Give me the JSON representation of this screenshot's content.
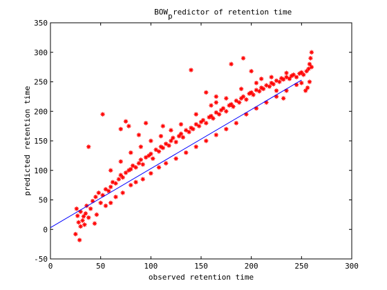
{
  "chart_data": {
    "type": "scatter",
    "title": "BOW_predictor of retention time",
    "title_main": "BOW",
    "title_sub": "p",
    "title_rest": "redictor of retention time",
    "xlabel": "observed retention time",
    "ylabel": "predicted retention time",
    "xlim": [
      0,
      300
    ],
    "ylim": [
      -50,
      350
    ],
    "xticks": [
      "0",
      "50",
      "100",
      "150",
      "200",
      "250",
      "300"
    ],
    "yticks": [
      "-50",
      "0",
      "50",
      "100",
      "150",
      "200",
      "250",
      "300",
      "350"
    ],
    "grid": false,
    "marker_color": "#ff0000",
    "line_color": "#0000ff",
    "series": [
      {
        "marker": "asterisk",
        "points": [
          [
            25,
            -8
          ],
          [
            29,
            -18
          ],
          [
            27,
            23
          ],
          [
            32,
            15
          ],
          [
            34,
            8
          ],
          [
            30,
            30
          ],
          [
            26,
            35
          ],
          [
            35,
            27
          ],
          [
            38,
            20
          ],
          [
            36,
            40
          ],
          [
            40,
            35
          ],
          [
            42,
            48
          ],
          [
            45,
            55
          ],
          [
            48,
            62
          ],
          [
            50,
            45
          ],
          [
            52,
            58
          ],
          [
            55,
            68
          ],
          [
            58,
            65
          ],
          [
            60,
            72
          ],
          [
            62,
            80
          ],
          [
            65,
            78
          ],
          [
            68,
            85
          ],
          [
            70,
            92
          ],
          [
            72,
            88
          ],
          [
            75,
            96
          ],
          [
            78,
            100
          ],
          [
            80,
            102
          ],
          [
            82,
            108
          ],
          [
            85,
            105
          ],
          [
            88,
            112
          ],
          [
            90,
            118
          ],
          [
            92,
            110
          ],
          [
            95,
            122
          ],
          [
            98,
            125
          ],
          [
            100,
            128
          ],
          [
            102,
            120
          ],
          [
            105,
            135
          ],
          [
            108,
            132
          ],
          [
            110,
            140
          ],
          [
            112,
            138
          ],
          [
            115,
            145
          ],
          [
            118,
            142
          ],
          [
            120,
            150
          ],
          [
            122,
            155
          ],
          [
            125,
            148
          ],
          [
            128,
            158
          ],
          [
            130,
            162
          ],
          [
            132,
            156
          ],
          [
            135,
            168
          ],
          [
            138,
            165
          ],
          [
            140,
            172
          ],
          [
            142,
            170
          ],
          [
            145,
            178
          ],
          [
            148,
            175
          ],
          [
            150,
            182
          ],
          [
            152,
            185
          ],
          [
            155,
            180
          ],
          [
            158,
            190
          ],
          [
            160,
            192
          ],
          [
            162,
            188
          ],
          [
            165,
            198
          ],
          [
            168,
            195
          ],
          [
            170,
            202
          ],
          [
            172,
            205
          ],
          [
            175,
            200
          ],
          [
            178,
            210
          ],
          [
            180,
            212
          ],
          [
            182,
            208
          ],
          [
            185,
            218
          ],
          [
            188,
            215
          ],
          [
            190,
            222
          ],
          [
            192,
            225
          ],
          [
            195,
            220
          ],
          [
            198,
            230
          ],
          [
            200,
            232
          ],
          [
            202,
            228
          ],
          [
            205,
            236
          ],
          [
            208,
            234
          ],
          [
            210,
            240
          ],
          [
            212,
            238
          ],
          [
            215,
            244
          ],
          [
            218,
            242
          ],
          [
            220,
            248
          ],
          [
            222,
            246
          ],
          [
            225,
            252
          ],
          [
            228,
            250
          ],
          [
            230,
            256
          ],
          [
            232,
            254
          ],
          [
            235,
            258
          ],
          [
            238,
            255
          ],
          [
            240,
            260
          ],
          [
            242,
            262
          ],
          [
            245,
            258
          ],
          [
            248,
            264
          ],
          [
            250,
            266
          ],
          [
            252,
            262
          ],
          [
            255,
            268
          ],
          [
            257,
            272
          ],
          [
            258,
            280
          ],
          [
            259,
            290
          ],
          [
            260,
            300
          ],
          [
            258,
            250
          ],
          [
            256,
            240
          ],
          [
            254,
            235
          ],
          [
            260,
            275
          ],
          [
            52,
            195
          ],
          [
            38,
            140
          ],
          [
            70,
            170
          ],
          [
            75,
            183
          ],
          [
            78,
            175
          ],
          [
            88,
            160
          ],
          [
            95,
            180
          ],
          [
            112,
            175
          ],
          [
            140,
            270
          ],
          [
            155,
            232
          ],
          [
            165,
            225
          ],
          [
            165,
            215
          ],
          [
            180,
            280
          ],
          [
            192,
            290
          ],
          [
            200,
            268
          ],
          [
            210,
            255
          ],
          [
            225,
            235
          ],
          [
            232,
            222
          ],
          [
            30,
            5
          ],
          [
            28,
            12
          ],
          [
            33,
            22
          ],
          [
            44,
            10
          ],
          [
            46,
            25
          ],
          [
            55,
            40
          ],
          [
            60,
            45
          ],
          [
            65,
            55
          ],
          [
            72,
            62
          ],
          [
            80,
            75
          ],
          [
            85,
            80
          ],
          [
            92,
            85
          ],
          [
            100,
            95
          ],
          [
            108,
            105
          ],
          [
            115,
            112
          ],
          [
            125,
            120
          ],
          [
            135,
            130
          ],
          [
            145,
            140
          ],
          [
            155,
            150
          ],
          [
            165,
            160
          ],
          [
            175,
            170
          ],
          [
            185,
            180
          ],
          [
            195,
            195
          ],
          [
            205,
            205
          ],
          [
            215,
            215
          ],
          [
            225,
            225
          ],
          [
            235,
            235
          ],
          [
            245,
            245
          ],
          [
            250,
            248
          ],
          [
            60,
            100
          ],
          [
            70,
            115
          ],
          [
            80,
            130
          ],
          [
            90,
            140
          ],
          [
            100,
            150
          ],
          [
            110,
            158
          ],
          [
            120,
            168
          ],
          [
            130,
            178
          ],
          [
            145,
            195
          ],
          [
            160,
            210
          ],
          [
            175,
            222
          ],
          [
            190,
            238
          ],
          [
            205,
            248
          ],
          [
            220,
            258
          ],
          [
            235,
            265
          ]
        ]
      }
    ],
    "fit_line": {
      "x": [
        0,
        250
      ],
      "y": [
        3,
        253
      ]
    }
  }
}
